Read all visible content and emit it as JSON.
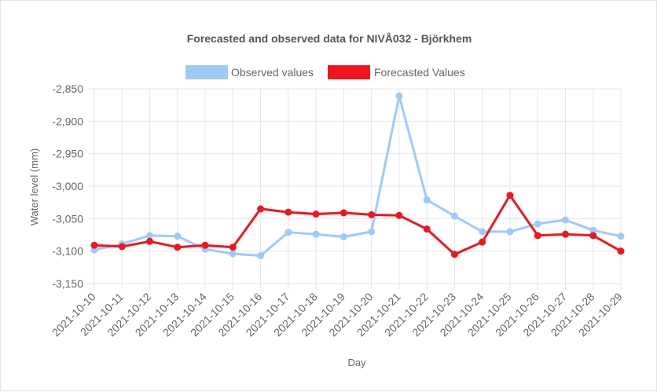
{
  "chart_data": {
    "type": "line",
    "title": "Forecasted and observed data for NIVÅ032 - Björkhem",
    "xlabel": "Day",
    "ylabel": "Water level (mm)",
    "ylim": [
      -3150,
      -2850
    ],
    "yticks": [
      -2850,
      -2900,
      -2950,
      -3000,
      -3050,
      -3100,
      -3150
    ],
    "ytick_labels": [
      "-2,850",
      "-2,900",
      "-2,950",
      "-3,000",
      "-3,050",
      "-3,100",
      "-3,150"
    ],
    "grid": true,
    "legend_position": "top",
    "categories": [
      "2021-10-10",
      "2021-10-11",
      "2021-10-12",
      "2021-10-13",
      "2021-10-14",
      "2021-10-15",
      "2021-10-16",
      "2021-10-17",
      "2021-10-18",
      "2021-10-19",
      "2021-10-20",
      "2021-10-21",
      "2021-10-22",
      "2021-10-23",
      "2021-10-24",
      "2021-10-25",
      "2021-10-26",
      "2021-10-27",
      "2021-10-28",
      "2021-10-29"
    ],
    "series": [
      {
        "name": "Observed values",
        "color": "#9ecaf8",
        "values": [
          -3098,
          -3089,
          -3076,
          -3077,
          -3097,
          -3104,
          -3107,
          -3071,
          -3074,
          -3078,
          -3070,
          -2861,
          -3021,
          -3046,
          -3070,
          -3070,
          -3058,
          -3052,
          -3068,
          -3077
        ]
      },
      {
        "name": "Forecasted Values",
        "color": "#f0151f",
        "values": [
          -3091,
          -3093,
          -3085,
          -3094,
          -3091,
          -3094,
          -3035,
          -3040,
          -3043,
          -3041,
          -3044,
          -3045,
          -3066,
          -3105,
          -3086,
          -3014,
          -3076,
          -3074,
          -3076,
          -3100
        ]
      }
    ]
  }
}
